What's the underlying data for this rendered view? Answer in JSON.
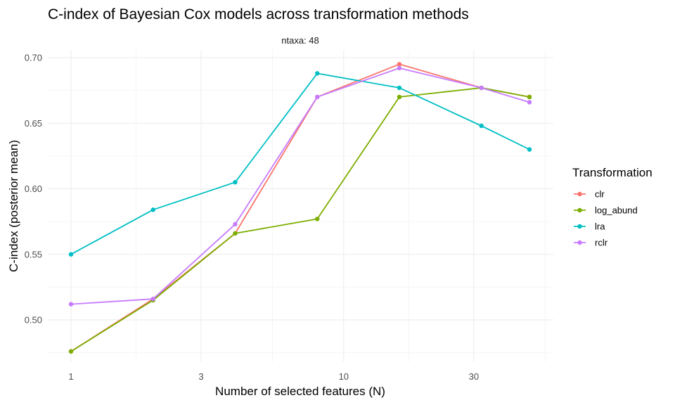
{
  "chart_data": {
    "type": "line",
    "title": "C-index of Bayesian Cox models across transformation methods",
    "facet_label": "ntaxa: 48",
    "xlabel": "Number of selected features (N)",
    "ylabel": "C-index (posterior mean)",
    "x_scale": "log10",
    "x_ticks": [
      1,
      3,
      10,
      30
    ],
    "x_tick_labels": [
      "1",
      "3",
      "10",
      "30"
    ],
    "xlim": [
      1,
      48
    ],
    "y_ticks": [
      0.5,
      0.55,
      0.6,
      0.65,
      0.7
    ],
    "y_tick_labels": [
      "0.50",
      "0.55",
      "0.60",
      "0.65",
      "0.70"
    ],
    "ylim": [
      0.47,
      0.705
    ],
    "grid": true,
    "legend": {
      "title": "Transformation",
      "placement": "right"
    },
    "x": [
      1,
      2,
      4,
      8,
      16,
      32,
      48
    ],
    "series": [
      {
        "name": "clr",
        "color": "#F8766D",
        "values": [
          0.476,
          0.516,
          0.566,
          0.67,
          0.695,
          0.677,
          0.67
        ]
      },
      {
        "name": "log_abund",
        "color": "#7CAE00",
        "values": [
          0.476,
          0.515,
          0.566,
          0.577,
          0.67,
          0.677,
          0.67
        ]
      },
      {
        "name": "lra",
        "color": "#00BFC4",
        "values": [
          0.55,
          0.584,
          0.605,
          0.688,
          0.677,
          0.648,
          0.63
        ]
      },
      {
        "name": "rclr",
        "color": "#C77CFF",
        "values": [
          0.512,
          0.516,
          0.573,
          0.67,
          0.692,
          0.677,
          0.666
        ]
      }
    ]
  }
}
